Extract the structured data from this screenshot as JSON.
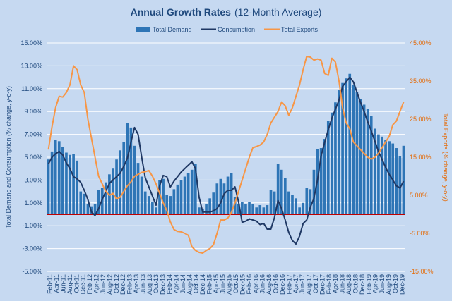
{
  "chart_data": {
    "type": "bar",
    "title": "Annual Growth Rates",
    "subtitle": "(12-Month Average)",
    "ylabel": "Total Demand and Consumption (% change, y-o-y)",
    "y2label": "Total Exports (% change, y-o-y)",
    "ylim": [
      -5,
      15
    ],
    "y2lim": [
      -15,
      45
    ],
    "yticks": [
      "-5.00%",
      "-3.00%",
      "-1.00%",
      "1.00%",
      "3.00%",
      "5.00%",
      "7.00%",
      "9.00%",
      "11.00%",
      "13.00%",
      "15.00%"
    ],
    "y2ticks": [
      "-15.00%",
      "-5.00%",
      "5.00%",
      "15.00%",
      "25.00%",
      "35.00%",
      "45.00%"
    ],
    "xticks": [
      "Feb-11",
      "Apr-11",
      "Jun-11",
      "Aug-11",
      "Oct-11",
      "Dec-11",
      "Feb-12",
      "Apr-12",
      "Jun-12",
      "Aug-12",
      "Oct-12",
      "Dec-12",
      "Feb-13",
      "Apr-13",
      "Jun-13",
      "Aug-13",
      "Oct-13",
      "Dec-13",
      "Feb-14",
      "Apr-14",
      "Jun-14",
      "Aug-14",
      "Oct-14",
      "Dec-14",
      "Feb-15",
      "Apr-15",
      "Jun-15",
      "Aug-15",
      "Oct-15",
      "Dec-15",
      "Feb-16",
      "Apr-16",
      "Jun-16",
      "Aug-16",
      "Oct-16",
      "Dec-16",
      "Feb-17",
      "Apr-17",
      "Jun-17",
      "Aug-17",
      "Oct-17",
      "Dec-17",
      "Feb-18",
      "Apr-18",
      "Jun-18",
      "Aug-18",
      "Oct-18",
      "Dec-18",
      "Feb-19",
      "Apr-19",
      "Jun-19",
      "Aug-19",
      "Oct-19",
      "Dec-19"
    ],
    "grid": true,
    "legend_position": "top",
    "zero_line_color": "#c00000",
    "series": [
      {
        "name": "Total Demand",
        "type": "bar",
        "axis": "left",
        "color": "#2e75b6",
        "values": [
          4.8,
          5.5,
          6.5,
          6.4,
          5.9,
          5.4,
          5.2,
          5.3,
          4.7,
          2.0,
          1.8,
          0.9,
          0.7,
          0.9,
          2.1,
          2.3,
          2.8,
          3.5,
          4.0,
          4.8,
          5.6,
          6.3,
          8.0,
          7.6,
          6.0,
          4.5,
          3.3,
          2.0,
          1.6,
          1.1,
          0.6,
          3.0,
          3.1,
          1.7,
          1.6,
          2.2,
          2.6,
          3.0,
          3.3,
          3.6,
          3.9,
          4.4,
          0.6,
          0.5,
          0.9,
          1.4,
          1.9,
          2.7,
          3.1,
          2.7,
          3.3,
          3.6,
          1.5,
          0.9,
          1.1,
          0.9,
          1.1,
          0.9,
          0.6,
          0.8,
          0.6,
          0.8,
          2.1,
          2.0,
          4.4,
          3.9,
          3.2,
          2.0,
          1.7,
          1.4,
          0.6,
          1.0,
          2.3,
          2.2,
          3.9,
          5.7,
          5.8,
          6.6,
          8.2,
          8.9,
          9.8,
          10.9,
          11.5,
          11.9,
          12.3,
          11.3,
          10.7,
          10.1,
          9.6,
          9.2,
          8.6,
          7.5,
          7.0,
          6.8,
          6.5,
          6.4,
          6.2,
          5.8,
          5.1,
          6.0
        ]
      },
      {
        "name": "Consumption",
        "type": "line",
        "axis": "left",
        "color": "#1f3864",
        "values": [
          4.4,
          5.0,
          5.3,
          5.5,
          5.2,
          4.5,
          4.0,
          3.3,
          3.1,
          2.8,
          2.1,
          1.3,
          0.2,
          -0.1,
          0.5,
          1.3,
          2.0,
          2.7,
          3.0,
          3.3,
          3.6,
          4.2,
          4.9,
          6.3,
          7.6,
          7.0,
          5.0,
          3.2,
          2.4,
          1.6,
          0.8,
          2.5,
          3.4,
          3.3,
          2.4,
          2.9,
          3.3,
          3.7,
          4.0,
          4.3,
          4.6,
          4.0,
          1.5,
          0.2,
          0.2,
          0.2,
          0.3,
          0.5,
          1.0,
          1.8,
          2.1,
          2.1,
          2.4,
          1.1,
          -0.7,
          -0.6,
          -0.4,
          -0.5,
          -0.6,
          -0.9,
          -0.8,
          -1.3,
          -1.3,
          -0.3,
          1.2,
          0.5,
          -0.5,
          -1.6,
          -2.3,
          -2.6,
          -1.9,
          -0.8,
          -0.5,
          0.6,
          1.4,
          3.0,
          5.1,
          6.3,
          7.4,
          8.4,
          9.2,
          10.0,
          11.2,
          11.6,
          12.0,
          11.6,
          10.7,
          9.8,
          9.0,
          8.1,
          7.3,
          6.4,
          5.5,
          4.8,
          4.1,
          3.5,
          3.0,
          2.5,
          2.3,
          2.9
        ]
      },
      {
        "name": "Total Exports",
        "type": "line",
        "axis": "right",
        "color": "#f79646",
        "values": [
          17.0,
          23.0,
          28.0,
          31.0,
          30.8,
          32.0,
          34.0,
          39.0,
          38.0,
          34.0,
          32.0,
          25.0,
          20.0,
          15.0,
          10.0,
          8.0,
          6.0,
          5.0,
          5.5,
          4.0,
          4.5,
          6.0,
          7.5,
          8.5,
          10.0,
          10.5,
          11.0,
          11.2,
          11.5,
          10.0,
          8.0,
          5.5,
          3.0,
          1.0,
          -2.0,
          -4.0,
          -4.5,
          -4.6,
          -5.0,
          -5.5,
          -8.5,
          -9.5,
          -10.0,
          -10.2,
          -9.5,
          -9.0,
          -8.0,
          -5.0,
          -1.5,
          -1.5,
          -1.0,
          0.5,
          3.0,
          6.0,
          9.0,
          12.0,
          15.0,
          17.5,
          17.8,
          18.2,
          19.0,
          21.0,
          24.0,
          25.5,
          27.0,
          29.5,
          28.5,
          26.0,
          28.0,
          31.0,
          34.0,
          38.0,
          41.5,
          41.3,
          40.5,
          40.8,
          40.5,
          37.0,
          36.5,
          41.0,
          40.0,
          35.0,
          28.0,
          24.0,
          22.5,
          19.0,
          18.0,
          17.0,
          16.0,
          15.0,
          14.5,
          15.0,
          16.0,
          17.5,
          19.0,
          20.5,
          23.5,
          24.5,
          27.0,
          29.5
        ]
      }
    ]
  }
}
